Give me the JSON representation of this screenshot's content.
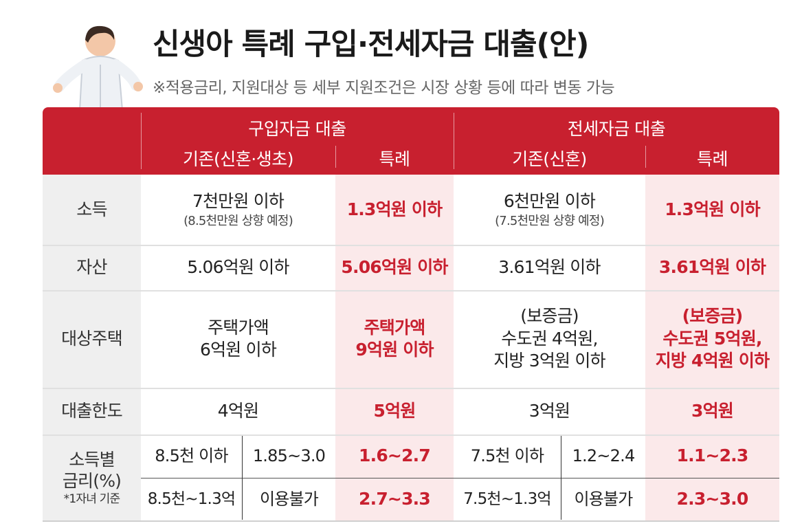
{
  "title": "신생아 특례 구입·전세자금 대출(안)",
  "note": "※적용금리, 지원대상 등 세부 지원조건은 시장 상황 등에 따라 변동 가능",
  "header": {
    "purchase": "구입자금 대출",
    "jeonse": "전세자금 대출",
    "purchase_base": "기존(신혼·생초)",
    "purchase_special": "특례",
    "jeonse_base": "기존(신혼)",
    "jeonse_special": "특례"
  },
  "rows": {
    "income": {
      "label": "소득",
      "purchase_base": "7천만원 이하",
      "purchase_base_sub": "(8.5천만원 상향 예정)",
      "purchase_special": "1.3억원 이하",
      "jeonse_base": "6천만원 이하",
      "jeonse_base_sub": "(7.5천만원 상향 예정)",
      "jeonse_special": "1.3억원 이하"
    },
    "assets": {
      "label": "자산",
      "purchase_base": "5.06억원 이하",
      "purchase_special": "5.06억원 이하",
      "jeonse_base": "3.61억원 이하",
      "jeonse_special": "3.61억원 이하"
    },
    "housing": {
      "label": "대상주택",
      "purchase_base_1": "주택가액",
      "purchase_base_2": "6억원 이하",
      "purchase_special_1": "주택가액",
      "purchase_special_2": "9억원 이하",
      "jeonse_base_1": "(보증금)",
      "jeonse_base_2": "수도권 4억원,",
      "jeonse_base_3": "지방 3억원 이하",
      "jeonse_special_1": "(보증금)",
      "jeonse_special_2": "수도권 5억원,",
      "jeonse_special_3": "지방 4억원 이하"
    },
    "limit": {
      "label": "대출한도",
      "purchase_base": "4억원",
      "purchase_special": "5억원",
      "jeonse_base": "3억원",
      "jeonse_special": "3억원"
    },
    "rate": {
      "label_1": "소득별",
      "label_2": "금리(%)",
      "label_3": "*1자녀 기준",
      "r1": {
        "purchase_income": "8.5천 이하",
        "purchase_rate": "1.85~3.0",
        "purchase_special": "1.6~2.7",
        "jeonse_income": "7.5천 이하",
        "jeonse_rate": "1.2~2.4",
        "jeonse_special": "1.1~2.3"
      },
      "r2": {
        "purchase_income": "8.5천~1.3억",
        "purchase_rate": "이용불가",
        "purchase_special": "2.7~3.3",
        "jeonse_income": "7.5천~1.3억",
        "jeonse_rate": "이용불가",
        "jeonse_special": "2.3~3.0"
      }
    }
  }
}
